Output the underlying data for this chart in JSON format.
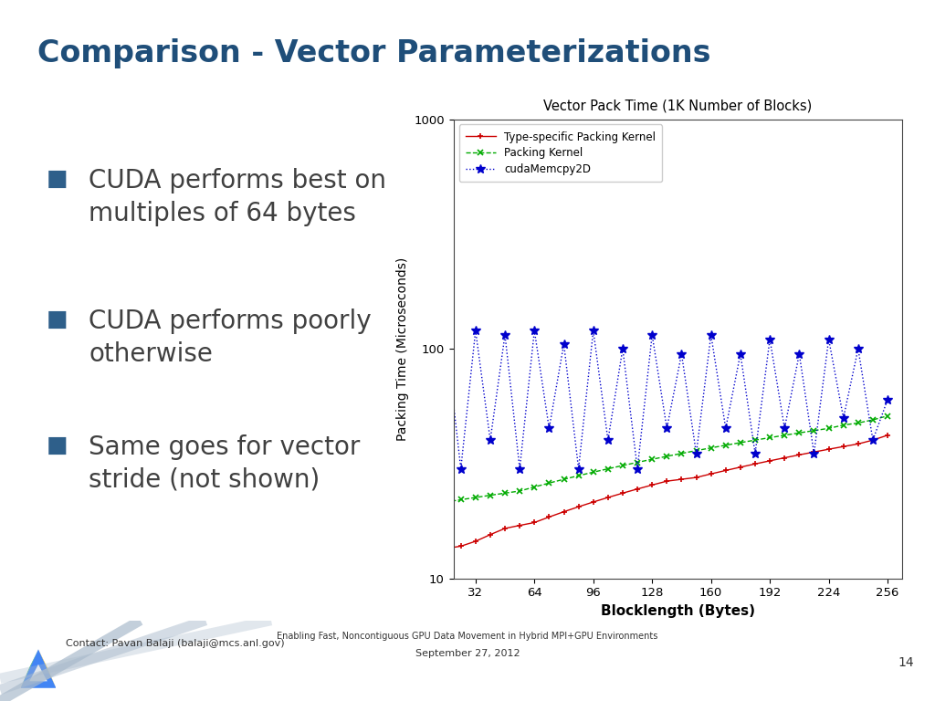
{
  "title": "Comparison - Vector Parameterizations",
  "title_color": "#1F4E79",
  "background_color": "#FFFFFF",
  "bullet_points": [
    "CUDA performs best on\nmultiples of 64 bytes",
    "CUDA performs poorly\notherwise",
    "Same goes for vector\nstride (not shown)"
  ],
  "chart_title": "Vector Pack Time (1K Number of Blocks)",
  "xlabel": "Blocklength (Bytes)",
  "ylabel": "Packing Time (Microseconds)",
  "xticks": [
    32,
    64,
    96,
    128,
    160,
    192,
    224,
    256
  ],
  "ylim_log": [
    10,
    1000
  ],
  "footer_left": "Contact: Pavan Balaji (balaji@mcs.anl.gov)",
  "footer_center": "Enabling Fast, Noncontiguous GPU Data Movement in Hybrid MPI+GPU Environments",
  "footer_date": "September 27, 2012",
  "slide_number": "14",
  "legend_entries": [
    "Type-specific Packing Kernel",
    "Packing Kernel",
    "cudaMemcpy2D"
  ],
  "line_colors": [
    "#CC0000",
    "#00AA00",
    "#0000CC"
  ],
  "top_band_color": "#7BAFD4",
  "footer_stripe_colors": [
    "#C5D8E8",
    "#B8CFDF",
    "#AABFD0"
  ],
  "bullet_color": "#2E5F8A",
  "x_data": [
    8,
    16,
    24,
    32,
    40,
    48,
    56,
    64,
    72,
    80,
    88,
    96,
    104,
    112,
    120,
    128,
    136,
    144,
    152,
    160,
    168,
    176,
    184,
    192,
    200,
    208,
    216,
    224,
    232,
    240,
    248,
    256
  ],
  "red_data": [
    14.0,
    13.5,
    13.8,
    14.5,
    15.5,
    16.5,
    17.0,
    17.5,
    18.5,
    19.5,
    20.5,
    21.5,
    22.5,
    23.5,
    24.5,
    25.5,
    26.5,
    27.0,
    27.5,
    28.5,
    29.5,
    30.5,
    31.5,
    32.5,
    33.5,
    34.5,
    35.5,
    36.5,
    37.5,
    38.5,
    40.0,
    42.0
  ],
  "green_data": [
    21.0,
    21.5,
    22.0,
    22.5,
    23.0,
    23.5,
    24.0,
    25.0,
    26.0,
    27.0,
    28.0,
    29.0,
    30.0,
    31.0,
    32.0,
    33.0,
    34.0,
    35.0,
    36.0,
    37.0,
    38.0,
    39.0,
    40.0,
    41.0,
    42.0,
    43.0,
    44.0,
    45.0,
    46.5,
    47.5,
    49.0,
    51.0
  ],
  "blue_data": [
    42,
    110,
    30,
    120,
    40,
    115,
    30,
    120,
    45,
    105,
    30,
    120,
    40,
    100,
    30,
    115,
    45,
    95,
    35,
    115,
    45,
    95,
    35,
    110,
    45,
    95,
    35,
    110,
    50,
    100,
    40,
    60
  ]
}
